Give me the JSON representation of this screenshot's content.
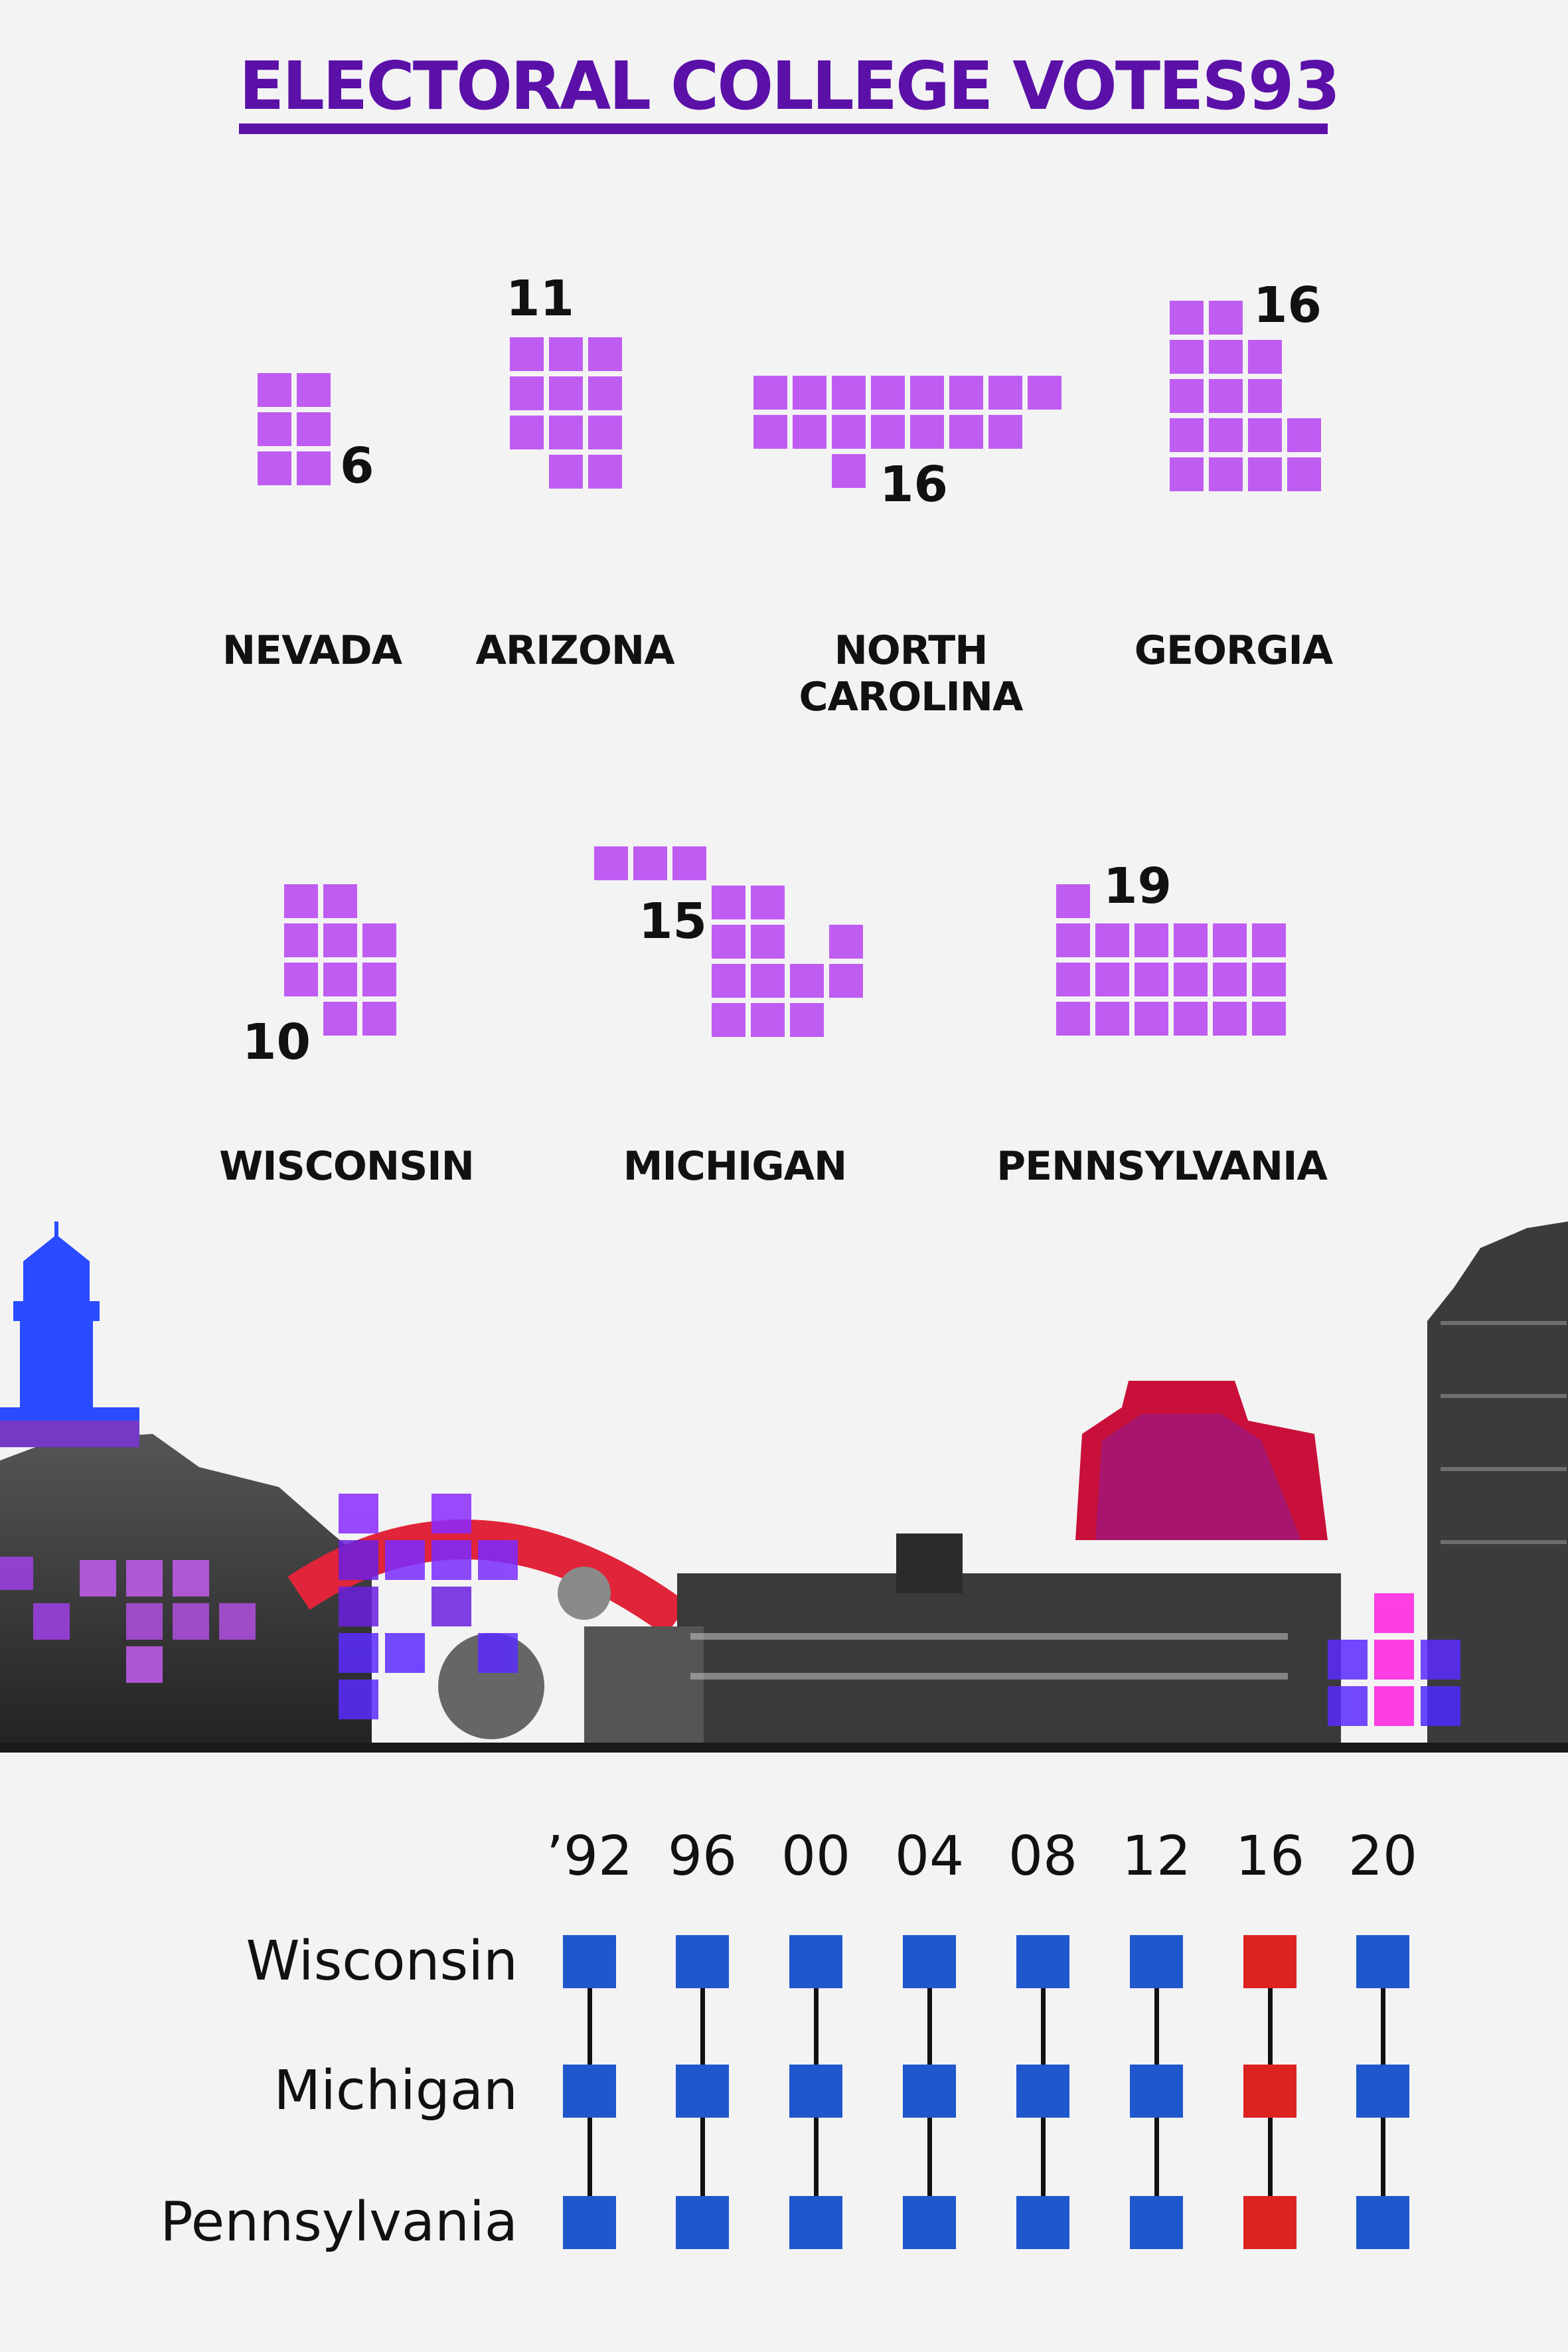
{
  "title": {
    "text": "ELECTORAL COLLEGE VOTES",
    "total": "93"
  },
  "colors": {
    "vote_cell": "#bf5cf2",
    "title": "#5b10a8",
    "democrat": "#1f57cc",
    "republican": "#dd2222"
  },
  "states": [
    {
      "name": "NEVADA",
      "votes": 6,
      "votes_label": "6"
    },
    {
      "name": "ARIZONA",
      "votes": 11,
      "votes_label": "11"
    },
    {
      "name": "NORTH CAROLINA",
      "name_lines": [
        "NORTH",
        "CAROLINA"
      ],
      "votes": 16,
      "votes_label": "16"
    },
    {
      "name": "GEORGIA",
      "votes": 16,
      "votes_label": "16"
    },
    {
      "name": "WISCONSIN",
      "votes": 10,
      "votes_label": "10"
    },
    {
      "name": "MICHIGAN",
      "votes": 15,
      "votes_label": "15"
    },
    {
      "name": "PENNSYLVANIA",
      "votes": 19,
      "votes_label": "19"
    }
  ],
  "chart_data": {
    "type": "table",
    "title": "ELECTORAL COLLEGE VOTES",
    "total": 93,
    "states": [
      "NEVADA",
      "ARIZONA",
      "NORTH CAROLINA",
      "GEORGIA",
      "WISCONSIN",
      "MICHIGAN",
      "PENNSYLVANIA"
    ],
    "votes": [
      6,
      11,
      16,
      16,
      10,
      15,
      19
    ],
    "history": {
      "years": [
        "’92",
        "96",
        "00",
        "04",
        "08",
        "12",
        "16",
        "20"
      ],
      "rows": [
        {
          "state": "Wisconsin",
          "results": [
            "D",
            "D",
            "D",
            "D",
            "D",
            "D",
            "R",
            "D"
          ]
        },
        {
          "state": "Michigan",
          "results": [
            "D",
            "D",
            "D",
            "D",
            "D",
            "D",
            "R",
            "D"
          ]
        },
        {
          "state": "Pennsylvania",
          "results": [
            "D",
            "D",
            "D",
            "D",
            "D",
            "D",
            "R",
            "D"
          ]
        }
      ]
    }
  }
}
